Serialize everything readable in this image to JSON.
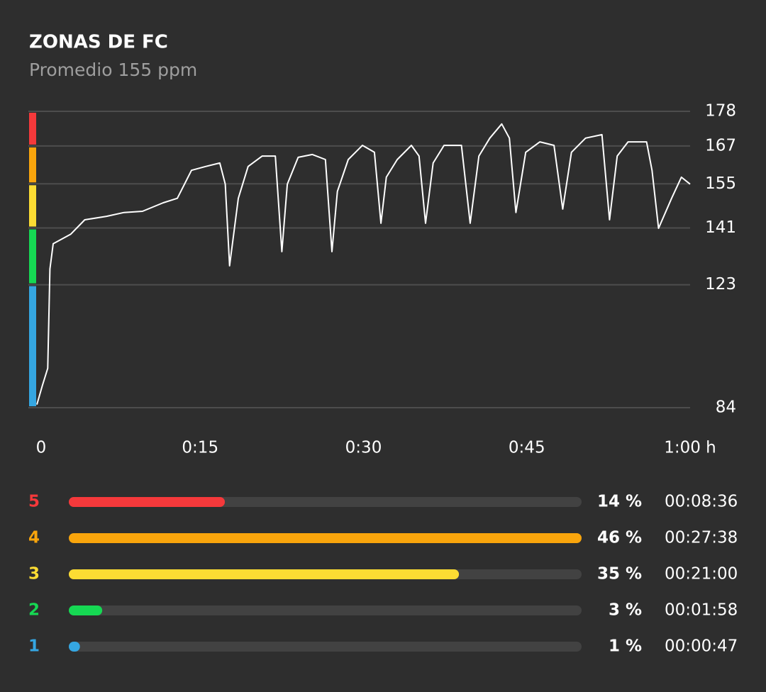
{
  "chart_data": [
    {
      "type": "line",
      "title": "ZONAS DE FC",
      "subtitle": "Promedio 155 ppm",
      "x": [
        0,
        0.5,
        1,
        1.2,
        1.5,
        3.1,
        4.4,
        6.4,
        8,
        9.7,
        11.6,
        12.9,
        14.2,
        15.5,
        16.8,
        17.3,
        17.7,
        18.5,
        19.4,
        20.7,
        21.9,
        22.5,
        23,
        24,
        25.3,
        26.5,
        27.1,
        27.6,
        28.6,
        29.9,
        31,
        31.6,
        32.1,
        33.1,
        34.4,
        35.1,
        35.7,
        36.4,
        37.4,
        39,
        39.8,
        40.6,
        41.6,
        42.7,
        43.4,
        44,
        44.9,
        46.2,
        47.5,
        48.3,
        49.1,
        50.4,
        51.9,
        52.6,
        53.3,
        54.3,
        56,
        56.5,
        57.1,
        58.3,
        59.2,
        60
      ],
      "series": [
        {
          "color": "#ffffff",
          "values": [
            85,
            91,
            96.5,
            128,
            136,
            139,
            143.6,
            144.7,
            145.9,
            146.3,
            149,
            150.4,
            159.3,
            160.5,
            161.6,
            154.9,
            129,
            150.4,
            160.5,
            163.8,
            163.8,
            133.5,
            154.9,
            163.4,
            164.3,
            162.7,
            133.5,
            152.6,
            162.7,
            167.2,
            165,
            142.5,
            157.1,
            162.7,
            167.2,
            163.8,
            142.5,
            161.6,
            167.2,
            167.2,
            142.5,
            163.8,
            169.5,
            174,
            169.5,
            145.9,
            165,
            168.3,
            167.2,
            147,
            165,
            169.5,
            170.6,
            143.6,
            163.8,
            168.3,
            168.3,
            159.3,
            140.9,
            150.4,
            157.1,
            154.9
          ]
        }
      ],
      "xlim": [
        0,
        60
      ],
      "xticks": [
        0,
        {
          "value": 15,
          "label": "0:15"
        },
        {
          "value": 30,
          "label": "0:30"
        },
        {
          "value": 45,
          "label": "0:45"
        },
        {
          "value": 60,
          "label": "1:00 h"
        }
      ],
      "ylim": [
        84,
        178
      ],
      "yticks": [
        178,
        167,
        155,
        141,
        123,
        84
      ],
      "grid": true
    },
    {
      "type": "bar",
      "orientation": "horizontal",
      "categories": [
        "5",
        "4",
        "3",
        "2",
        "1"
      ],
      "colors": [
        "#f5393b",
        "#f9a50c",
        "#fcdc33",
        "#16d853",
        "#35a6e1"
      ],
      "values": [
        14,
        46,
        35,
        3,
        1
      ],
      "value_labels": [
        "14 %",
        "46 %",
        "35 %",
        "3 %",
        "1 %"
      ],
      "durations": [
        "00:08:36",
        "00:27:38",
        "00:21:00",
        "00:01:58",
        "00:00:47"
      ]
    }
  ]
}
